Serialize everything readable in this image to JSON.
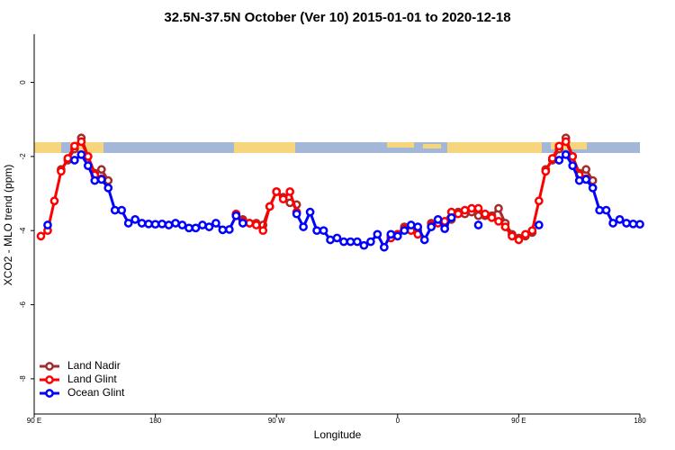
{
  "chart_data": {
    "type": "line",
    "title": "32.5N-37.5N October (Ver 10)   2015-01-01 to 2020-12-18",
    "x_label": "Longitude",
    "y_label": "XCO2 - MLO trend (ppm)",
    "x": [
      90,
      95,
      100,
      105,
      110,
      115,
      120,
      125,
      130,
      135,
      140,
      145,
      150,
      155,
      160,
      165,
      170,
      175,
      180,
      185,
      190,
      195,
      200,
      205,
      210,
      215,
      220,
      225,
      230,
      235,
      240,
      245,
      250,
      255,
      260,
      265,
      270,
      275,
      280,
      285,
      290,
      295,
      300,
      305,
      310,
      315,
      320,
      325,
      330,
      335,
      340,
      345,
      350,
      355,
      360,
      365,
      370,
      375,
      380,
      385,
      390,
      395,
      400,
      405,
      410,
      415,
      420,
      425,
      430,
      435,
      440,
      445,
      450,
      455,
      460,
      465,
      470,
      475,
      480,
      485,
      490,
      495,
      500,
      505,
      510,
      515,
      520,
      525,
      530,
      535,
      540
    ],
    "xlim": [
      90,
      540
    ],
    "xticks": [
      {
        "value": 90,
        "label": "90 E"
      },
      180,
      {
        "value": 270,
        "label": "90 W"
      },
      {
        "value": 360,
        "label": "0"
      },
      {
        "value": 450,
        "label": "90 E"
      },
      {
        "value": 540,
        "label": "180"
      }
    ],
    "ylim": [
      -8.95,
      1.3
    ],
    "yticks": [
      0,
      -2,
      -4,
      -6,
      -8
    ],
    "legend": "bottom-left",
    "series": [
      {
        "name": "Land Nadir",
        "color": "#a52a2a",
        "values": [
          null,
          null,
          null,
          null,
          -2.35,
          -2.1,
          -1.8,
          -1.5,
          -2.0,
          -2.45,
          -2.35,
          -2.65,
          null,
          null,
          null,
          null,
          null,
          null,
          null,
          null,
          null,
          null,
          null,
          null,
          null,
          null,
          null,
          null,
          null,
          null,
          -3.6,
          -3.7,
          -3.8,
          -3.8,
          -3.85,
          -3.35,
          -2.95,
          -3.1,
          -3.25,
          -3.3,
          null,
          null,
          null,
          null,
          null,
          null,
          null,
          null,
          null,
          null,
          null,
          null,
          null,
          -4.15,
          -4.1,
          -3.9,
          -3.95,
          -4.0,
          null,
          -3.8,
          -3.75,
          -3.85,
          -3.7,
          -3.5,
          -3.55,
          -3.5,
          -3.6,
          -3.6,
          -3.6,
          -3.4,
          -3.8,
          -4.1,
          -4.2,
          -4.15,
          -4.05,
          null,
          -2.35,
          -2.1,
          -1.8,
          -1.5,
          -2.0,
          -2.45,
          -2.35,
          -2.65,
          null,
          null,
          null,
          null,
          null,
          null,
          null
        ]
      },
      {
        "name": "Land Glint",
        "color": "#ff0000",
        "values": [
          null,
          -4.15,
          -4.0,
          -3.2,
          -2.4,
          -2.05,
          -1.72,
          -1.6,
          -2.0,
          -2.5,
          -2.6,
          null,
          null,
          null,
          null,
          null,
          null,
          null,
          null,
          null,
          null,
          null,
          null,
          null,
          null,
          null,
          null,
          null,
          null,
          null,
          -3.55,
          -3.75,
          -3.8,
          -3.85,
          -4.0,
          -3.35,
          -2.95,
          -3.15,
          -2.95,
          -3.5,
          null,
          null,
          null,
          null,
          null,
          null,
          null,
          null,
          null,
          null,
          null,
          null,
          null,
          -4.2,
          -4.1,
          -3.95,
          -4.0,
          -4.1,
          null,
          -3.85,
          -3.8,
          -3.75,
          -3.5,
          -3.55,
          -3.45,
          -3.4,
          -3.4,
          -3.55,
          -3.65,
          -3.75,
          -3.9,
          -4.15,
          -4.25,
          -4.1,
          -4.0,
          -3.2,
          -2.4,
          -2.05,
          -1.72,
          -1.6,
          -2.0,
          -2.5,
          -2.6,
          null,
          null,
          null,
          null,
          null,
          null,
          null,
          null
        ]
      },
      {
        "name": "Ocean Glint",
        "color": "#0000ff",
        "values": [
          null,
          null,
          -3.85,
          null,
          null,
          null,
          -2.1,
          -1.95,
          -2.25,
          -2.65,
          -2.62,
          -2.85,
          -3.45,
          -3.45,
          -3.8,
          -3.7,
          -3.8,
          -3.82,
          -3.83,
          -3.82,
          -3.85,
          -3.8,
          -3.85,
          -3.93,
          -3.93,
          -3.85,
          -3.9,
          -3.8,
          -3.98,
          -3.97,
          -3.6,
          -3.8,
          null,
          null,
          null,
          null,
          null,
          null,
          null,
          -3.55,
          -3.9,
          -3.5,
          -4.0,
          -4.0,
          -4.25,
          -4.2,
          -4.3,
          -4.3,
          -4.3,
          -4.4,
          -4.3,
          -4.1,
          -4.45,
          -4.1,
          -4.15,
          -4.0,
          -3.85,
          -3.9,
          -4.25,
          -3.9,
          -3.7,
          -3.95,
          -3.65,
          null,
          null,
          null,
          -3.85,
          null,
          null,
          null,
          null,
          null,
          null,
          null,
          null,
          -3.85,
          null,
          null,
          -2.1,
          -1.95,
          -2.25,
          -2.65,
          -2.62,
          -2.85,
          -3.45,
          -3.45,
          -3.8,
          -3.7,
          -3.8,
          -3.82,
          -3.83
        ]
      }
    ]
  }
}
